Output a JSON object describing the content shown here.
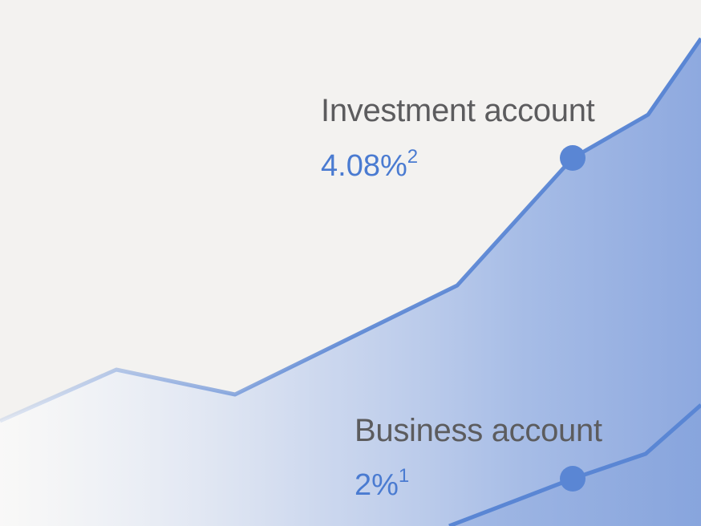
{
  "chart_data": {
    "type": "area",
    "series": [
      {
        "name": "Investment account",
        "rate": "4.08%",
        "footnote": "2"
      },
      {
        "name": "Business account",
        "rate": "2%",
        "footnote": "1"
      }
    ],
    "grid": false,
    "colors": {
      "line": "#5a86d4",
      "fill": "#8aa7dd",
      "label": "#5c5c5e",
      "rate": "#4a7bd1",
      "background": "#f3f2f0"
    }
  }
}
